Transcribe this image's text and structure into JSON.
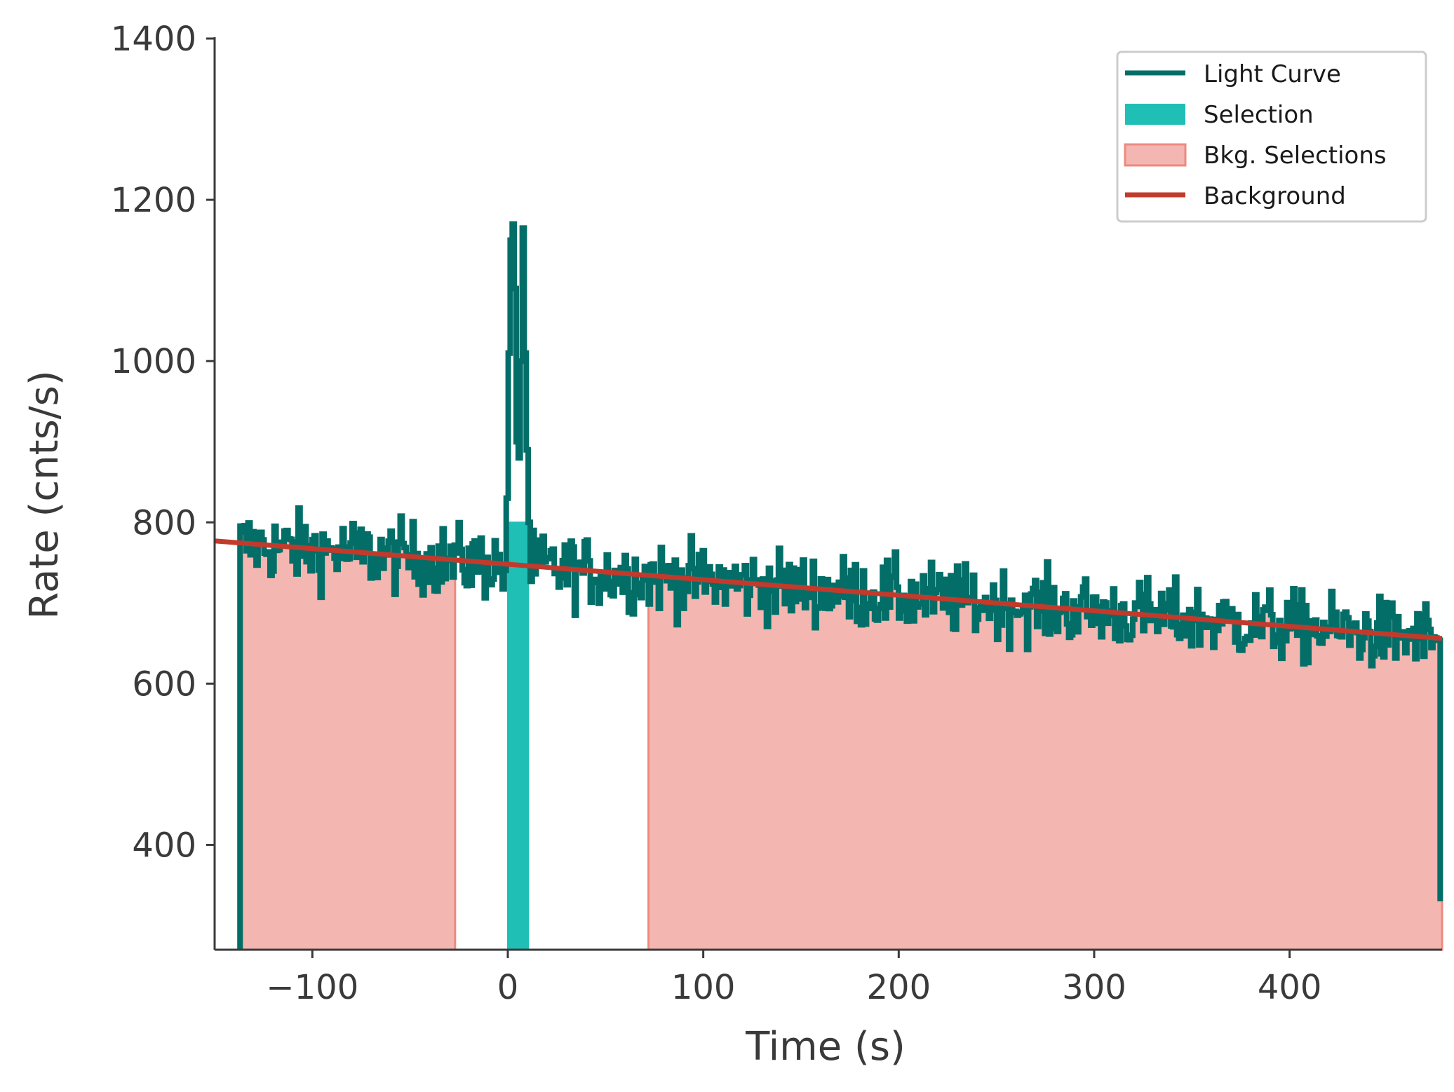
{
  "chart_data": {
    "type": "line",
    "title": "",
    "xlabel": "Time (s)",
    "ylabel": "Rate (cnts/s)",
    "xlim": [
      -150,
      478
    ],
    "ylim": [
      270,
      1400
    ],
    "xticks": [
      -100,
      0,
      100,
      200,
      300,
      400
    ],
    "xtick_labels": [
      "−100",
      "0",
      "100",
      "200",
      "300",
      "400"
    ],
    "yticks": [
      400,
      600,
      800,
      1000,
      1200,
      1400
    ],
    "ytick_labels": [
      "400",
      "600",
      "800",
      "1000",
      "1200",
      "1400"
    ],
    "colors": {
      "light_curve": "#036e68",
      "selection": "#20bfb5",
      "bkg_selection_fill": "#f4b6b1",
      "bkg_selection_edge": "#ec8a80",
      "background": "#c23a2c",
      "axis": "#3a3a3a"
    },
    "light_curve": {
      "bin_width_s": 1.024,
      "t_start": -137,
      "t_end": 476,
      "trend_start_rate": 773,
      "trend_end_rate": 656,
      "noise_amplitude": 38,
      "peak": [
        [
          -1,
          830
        ],
        [
          0,
          1010
        ],
        [
          1,
          1150
        ],
        [
          2,
          1170
        ],
        [
          3,
          1090
        ],
        [
          4,
          900
        ],
        [
          5,
          880
        ],
        [
          6,
          1000
        ],
        [
          7,
          1165
        ],
        [
          8,
          1010
        ],
        [
          9,
          890
        ],
        [
          10,
          800
        ]
      ]
    },
    "selection": {
      "start": 0,
      "end": 10.5
    },
    "bkg_selections": [
      {
        "start": -136,
        "end": -27
      },
      {
        "start": 72,
        "end": 478
      }
    ],
    "background_fit": {
      "x": [
        -150,
        478
      ],
      "y": [
        777,
        656
      ]
    },
    "legend": {
      "position": "top-right",
      "entries": [
        "Light Curve",
        "Selection",
        "Bkg. Selections",
        "Background"
      ]
    }
  }
}
